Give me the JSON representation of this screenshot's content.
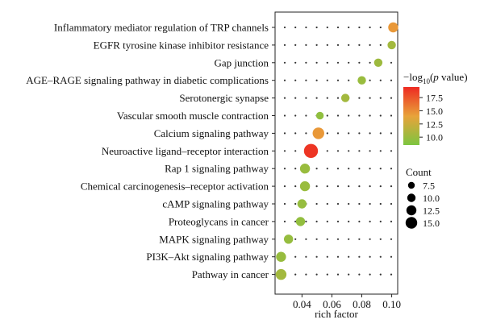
{
  "chart_data": {
    "type": "scatter",
    "title": "",
    "xlabel": "rich factor",
    "ylabel": "",
    "xlim": [
      0.022,
      0.104
    ],
    "xticks": [
      0.04,
      0.06,
      0.08,
      0.1
    ],
    "xtick_labels": [
      "0.04",
      "0.06",
      "0.08",
      "0.10"
    ],
    "categories": [
      "Inflammatory mediator regulation of TRP channels",
      "EGFR tyrosine kinase inhibitor resistance",
      "Gap junction",
      "AGE–RAGE signaling pathway in diabetic complications",
      "Serotonergic synapse",
      "Vascular smooth muscle contraction",
      "Calcium signaling pathway",
      "Neuroactive ligand–receptor interaction",
      "Rap 1 signaling pathway",
      "Chemical carcinogenesis–receptor activation",
      "cAMP signaling pathway",
      "Proteoglycans in cancer",
      "MAPK signaling pathway",
      "PI3K–Akt signaling pathway",
      "Pathway in cancer"
    ],
    "points": [
      {
        "category": "Inflammatory mediator regulation of TRP channels",
        "x": 0.101,
        "neg_log10_p": 14.5,
        "count": 10
      },
      {
        "category": "EGFR tyrosine kinase inhibitor resistance",
        "x": 0.1,
        "neg_log10_p": 10.5,
        "count": 8
      },
      {
        "category": "Gap junction",
        "x": 0.091,
        "neg_log10_p": 10.2,
        "count": 8
      },
      {
        "category": "AGE–RAGE signaling pathway in diabetic complications",
        "x": 0.08,
        "neg_log10_p": 10.0,
        "count": 8
      },
      {
        "category": "Serotonergic synapse",
        "x": 0.069,
        "neg_log10_p": 10.5,
        "count": 8
      },
      {
        "category": "Vascular smooth muscle contraction",
        "x": 0.052,
        "neg_log10_p": 9.5,
        "count": 7
      },
      {
        "category": "Calcium signaling pathway",
        "x": 0.051,
        "neg_log10_p": 14.5,
        "count": 12
      },
      {
        "category": "Neuroactive ligand–receptor interaction",
        "x": 0.046,
        "neg_log10_p": 19.0,
        "count": 15
      },
      {
        "category": "Rap 1 signaling pathway",
        "x": 0.042,
        "neg_log10_p": 10.0,
        "count": 10
      },
      {
        "category": "Chemical carcinogenesis–receptor activation",
        "x": 0.042,
        "neg_log10_p": 10.0,
        "count": 10
      },
      {
        "category": "cAMP signaling pathway",
        "x": 0.04,
        "neg_log10_p": 9.8,
        "count": 9
      },
      {
        "category": "Proteoglycans in cancer",
        "x": 0.039,
        "neg_log10_p": 9.6,
        "count": 9
      },
      {
        "category": "MAPK signaling pathway",
        "x": 0.031,
        "neg_log10_p": 9.8,
        "count": 9
      },
      {
        "category": "PI3K–Akt signaling pathway",
        "x": 0.026,
        "neg_log10_p": 9.9,
        "count": 10
      },
      {
        "category": "Pathway in cancer",
        "x": 0.026,
        "neg_log10_p": 10.5,
        "count": 11
      }
    ],
    "color_legend": {
      "title_prefix": "−log",
      "title_sub": "10",
      "title_suffix": "(",
      "title_italic": "p",
      "title_end": " value)",
      "ticks": [
        "17.5",
        "15.0",
        "12.5",
        "10.0"
      ],
      "tick_values": [
        17.5,
        15.0,
        12.5,
        10.0
      ],
      "range": [
        8.5,
        19.5
      ],
      "low_color": "#7cc540",
      "mid_color": "#e8a33a",
      "high_color": "#ee2a22"
    },
    "size_legend": {
      "title": "Count",
      "labels": [
        "7.5",
        "10.0",
        "12.5",
        "15.0"
      ],
      "values": [
        7.5,
        10.0,
        12.5,
        15.0
      ]
    },
    "legend_position": "right",
    "grid": "dotted background"
  }
}
